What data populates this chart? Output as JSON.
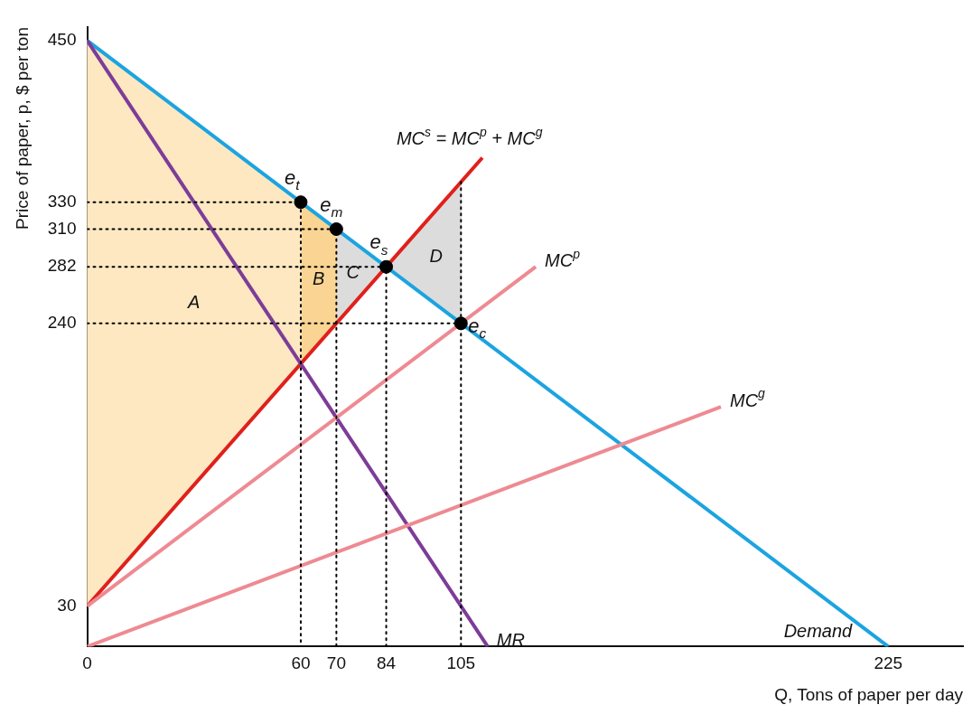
{
  "chart_data": {
    "type": "line",
    "xlabel": "Q, Tons of paper per day",
    "ylabel": "Price of paper, p, $ per ton",
    "xlim": [
      0,
      246
    ],
    "ylim": [
      0,
      460
    ],
    "xticks": [
      0,
      60,
      70,
      84,
      105,
      225
    ],
    "yticks": [
      30,
      240,
      282,
      310,
      330,
      450
    ],
    "marker": "none",
    "series": [
      {
        "type": "area",
        "name": "A",
        "color": "#fde8c2",
        "x": [
          0,
          60,
          60,
          0
        ],
        "values": [
          450,
          330,
          210,
          30
        ]
      },
      {
        "type": "area",
        "name": "B",
        "color": "#f9d493",
        "x": [
          60,
          70,
          70,
          60
        ],
        "values": [
          330,
          310,
          240,
          210
        ]
      },
      {
        "type": "area",
        "name": "C",
        "color": "#dcdcdc",
        "x": [
          70,
          84,
          70
        ],
        "values": [
          310,
          282,
          240
        ]
      },
      {
        "type": "area",
        "name": "D",
        "color": "#dcdcdc",
        "x": [
          84,
          105,
          105
        ],
        "values": [
          282,
          345,
          240
        ]
      },
      {
        "color": "#000000",
        "line_style": "dotted",
        "x": [
          0,
          60,
          60
        ],
        "values": [
          330,
          330,
          0
        ]
      },
      {
        "color": "#000000",
        "line_style": "dotted",
        "x": [
          0,
          70,
          70
        ],
        "values": [
          310,
          310,
          0
        ]
      },
      {
        "color": "#000000",
        "line_style": "dotted",
        "x": [
          0,
          84,
          84
        ],
        "values": [
          282,
          282,
          0
        ]
      },
      {
        "color": "#000000",
        "line_style": "dotted",
        "x": [
          0,
          105
        ],
        "values": [
          240,
          240
        ]
      },
      {
        "color": "#000000",
        "line_style": "dotted",
        "x": [
          105,
          105
        ],
        "values": [
          345,
          0
        ]
      },
      {
        "name": "MC$^{g}$",
        "color": "#ee8a92",
        "x": [
          0,
          178
        ],
        "values": [
          0,
          178
        ]
      },
      {
        "name": "MC$^{p}$",
        "color": "#ee8a92",
        "x": [
          0,
          126
        ],
        "values": [
          30,
          282
        ]
      },
      {
        "name": "MR",
        "color": "#7d3c98",
        "x": [
          0,
          112.5
        ],
        "values": [
          450,
          0
        ]
      },
      {
        "name": "Demand",
        "color": "#1ba4e0",
        "x": [
          0,
          225
        ],
        "values": [
          450,
          0
        ]
      },
      {
        "name": "MC$^{s}$ = MC$^{p}$ + MC$^{g}$",
        "color": "#e0201b",
        "x": [
          0,
          111
        ],
        "values": [
          30,
          363
        ]
      },
      {
        "type": "scatter",
        "marker": "circle",
        "color": "#000000",
        "x": [
          60,
          70,
          84,
          105
        ],
        "values": [
          330,
          310,
          282,
          240
        ]
      }
    ],
    "annotations": [
      {
        "text": "e$_{t}$",
        "x": 60,
        "y": 330
      },
      {
        "text": "e$_{m}$",
        "x": 70,
        "y": 310
      },
      {
        "text": "e$_{s}$",
        "x": 84,
        "y": 282
      },
      {
        "text": "e$_{c}$",
        "x": 105,
        "y": 240
      }
    ]
  }
}
